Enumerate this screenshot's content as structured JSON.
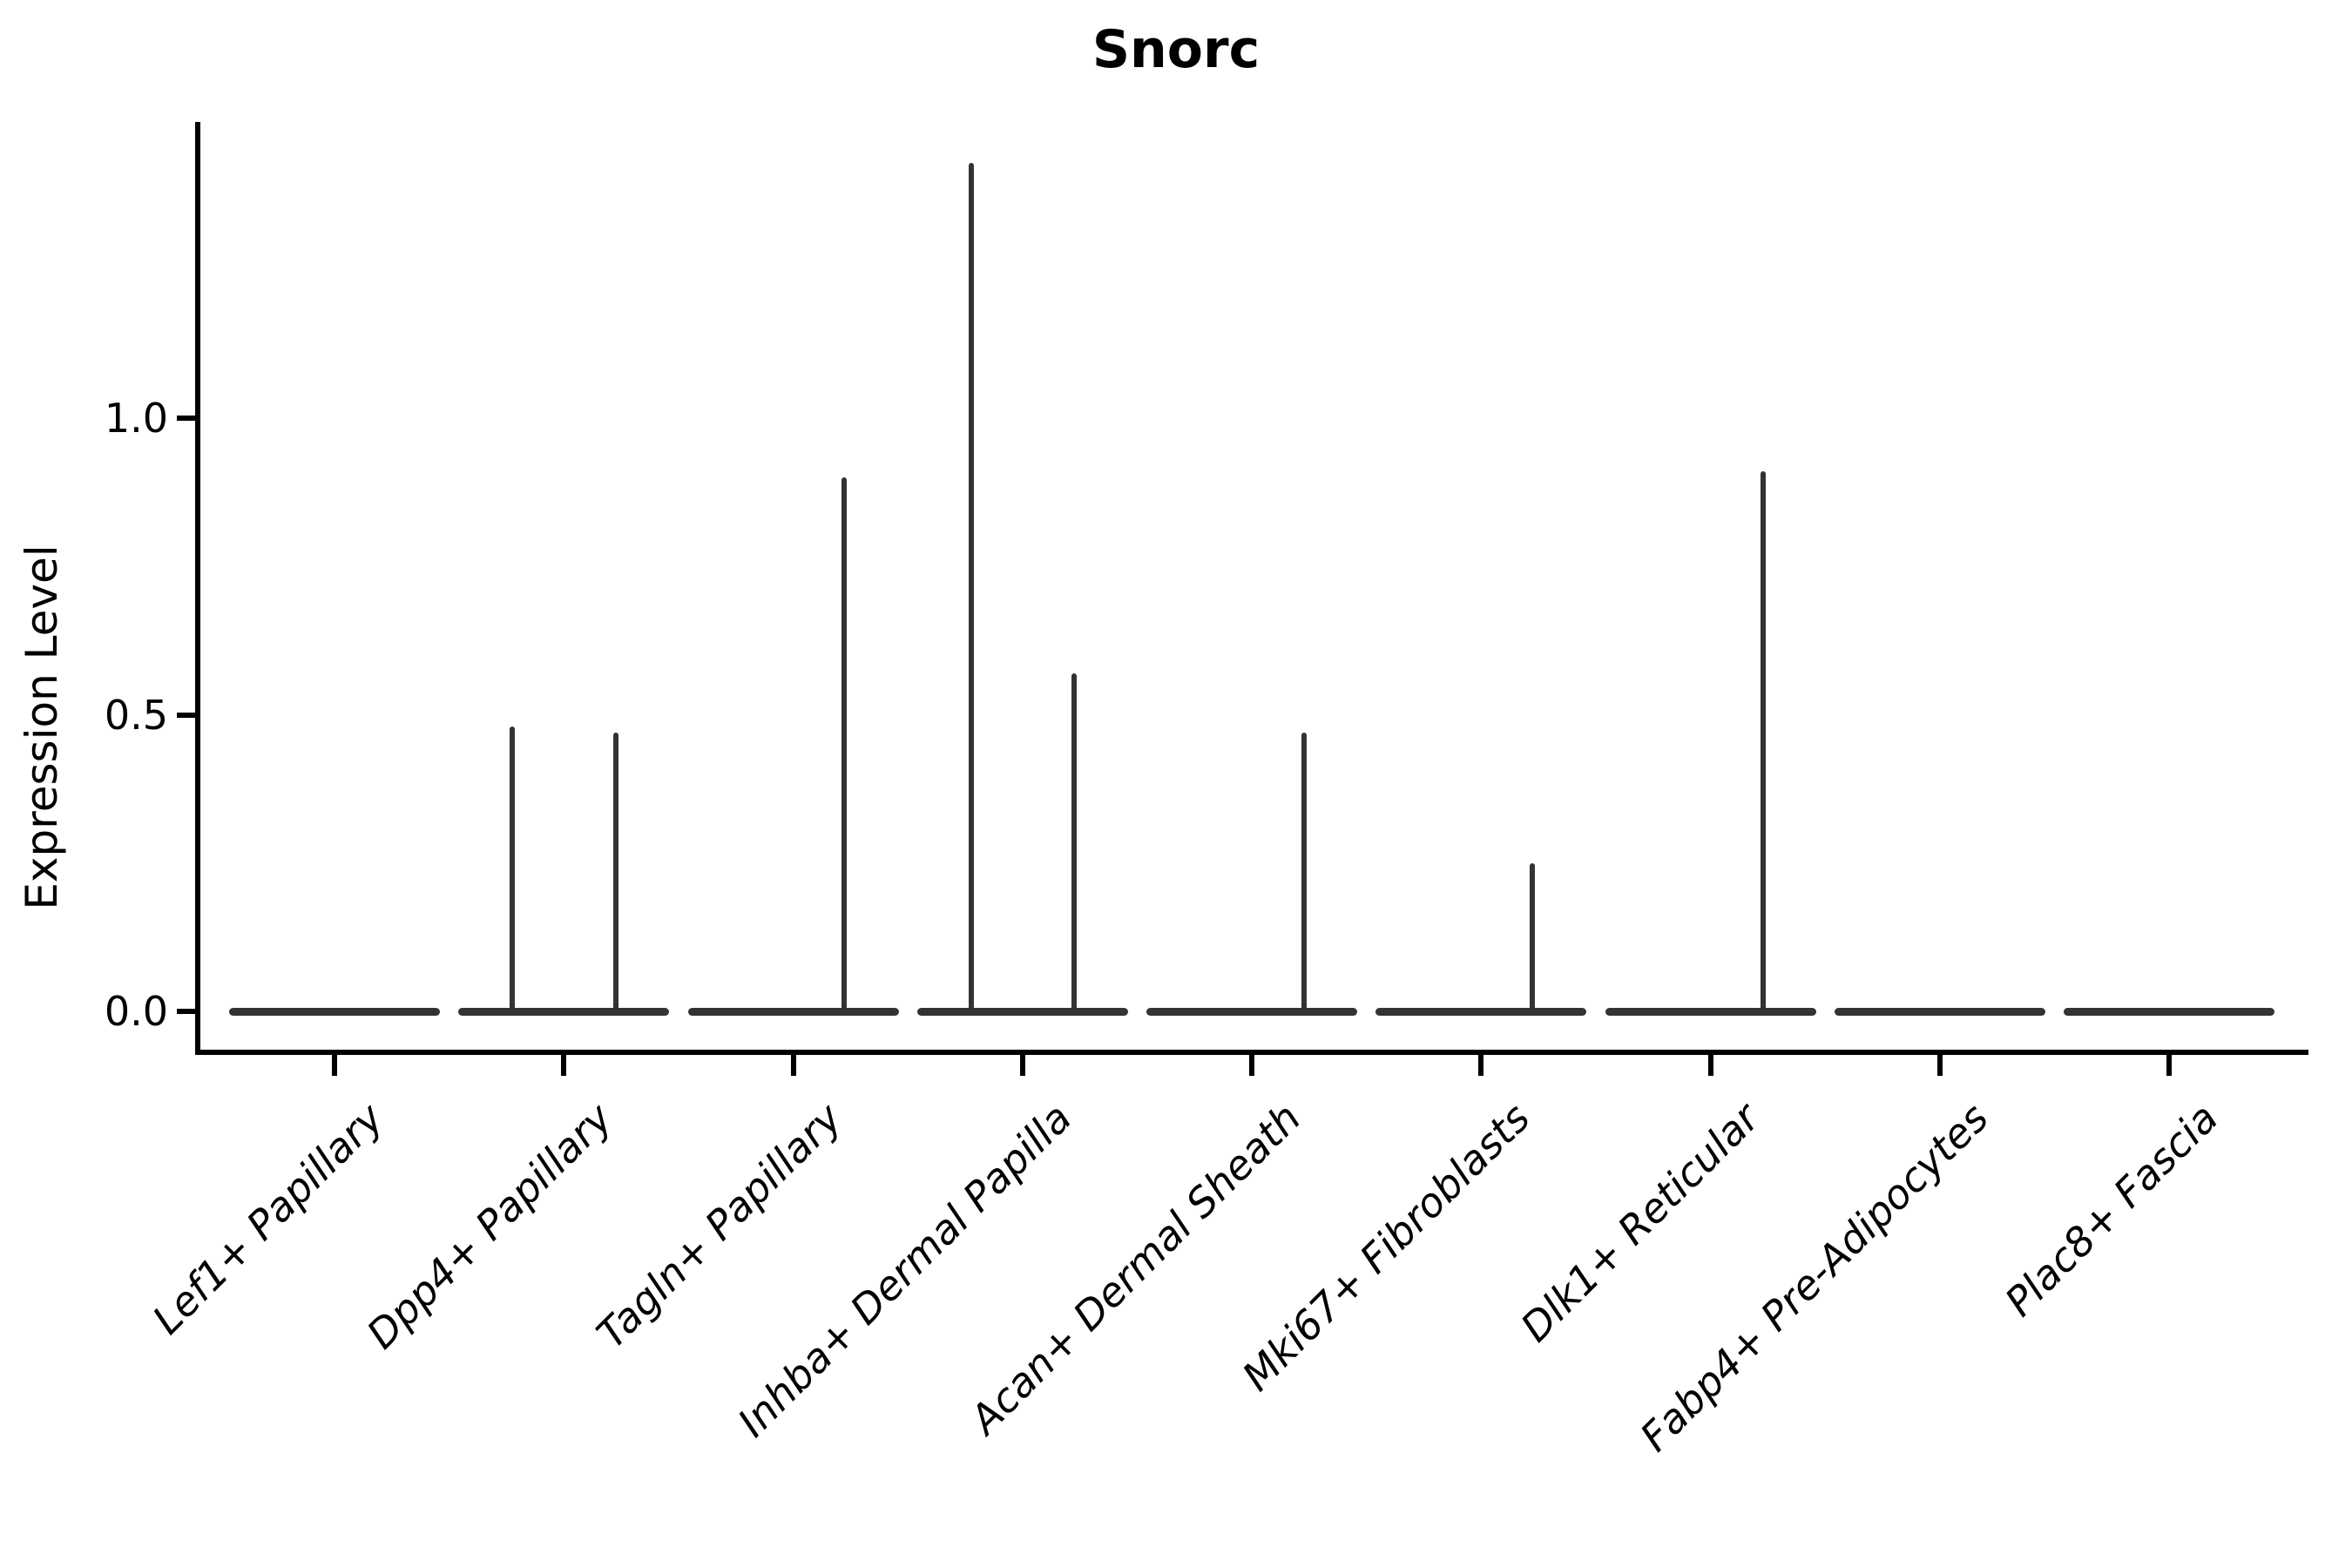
{
  "title": "Snorc",
  "ylabel": "Expression Level",
  "colors": {
    "violin": "#333333",
    "axis": "#000000",
    "background": "#ffffff"
  },
  "chart_data": {
    "type": "violin",
    "title": "Snorc",
    "xlabel": "",
    "ylabel": "Expression Level",
    "grid": false,
    "legend": "none",
    "ylim": [
      -0.07,
      1.5
    ],
    "yticks": [
      {
        "value": 0.0,
        "label": "0.0"
      },
      {
        "value": 0.5,
        "label": "0.5"
      },
      {
        "value": 1.0,
        "label": "1.0"
      }
    ],
    "categories": [
      "Lef1+ Papillary",
      "Dpp4+ Papillary",
      "Tagln+ Papillary",
      "Inhba+ Dermal Papilla",
      "Acan+ Dermal Sheath",
      "Mki67+ Fibroblasts",
      "Dlk1+ Reticular",
      "Fabp4+ Pre-Adipocytes",
      "Plac8+ Fascia"
    ],
    "series": [
      {
        "name": "Lef1+ Papillary",
        "baseline_value": 0.0,
        "spikes": []
      },
      {
        "name": "Dpp4+ Papillary",
        "baseline_value": 0.0,
        "spikes": [
          {
            "dx": -0.224,
            "max": 0.48
          },
          {
            "dx": 0.228,
            "max": 0.47
          }
        ]
      },
      {
        "name": "Tagln+ Papillary",
        "baseline_value": 0.0,
        "spikes": [
          {
            "dx": 0.224,
            "max": 0.9
          }
        ]
      },
      {
        "name": "Inhba+ Dermal Papilla",
        "baseline_value": 0.0,
        "spikes": [
          {
            "dx": -0.224,
            "max": 1.43
          },
          {
            "dx": 0.224,
            "max": 0.57
          }
        ]
      },
      {
        "name": "Acan+ Dermal Sheath",
        "baseline_value": 0.0,
        "spikes": [
          {
            "dx": 0.228,
            "max": 0.47
          }
        ]
      },
      {
        "name": "Mki67+ Fibroblasts",
        "baseline_value": 0.0,
        "spikes": [
          {
            "dx": 0.224,
            "max": 0.25
          }
        ]
      },
      {
        "name": "Dlk1+ Reticular",
        "baseline_value": 0.0,
        "spikes": [
          {
            "dx": 0.228,
            "max": 0.91
          }
        ]
      },
      {
        "name": "Fabp4+ Pre-Adipocytes",
        "baseline_value": 0.0,
        "spikes": []
      },
      {
        "name": "Plac8+ Fascia",
        "baseline_value": 0.0,
        "spikes": []
      }
    ]
  }
}
